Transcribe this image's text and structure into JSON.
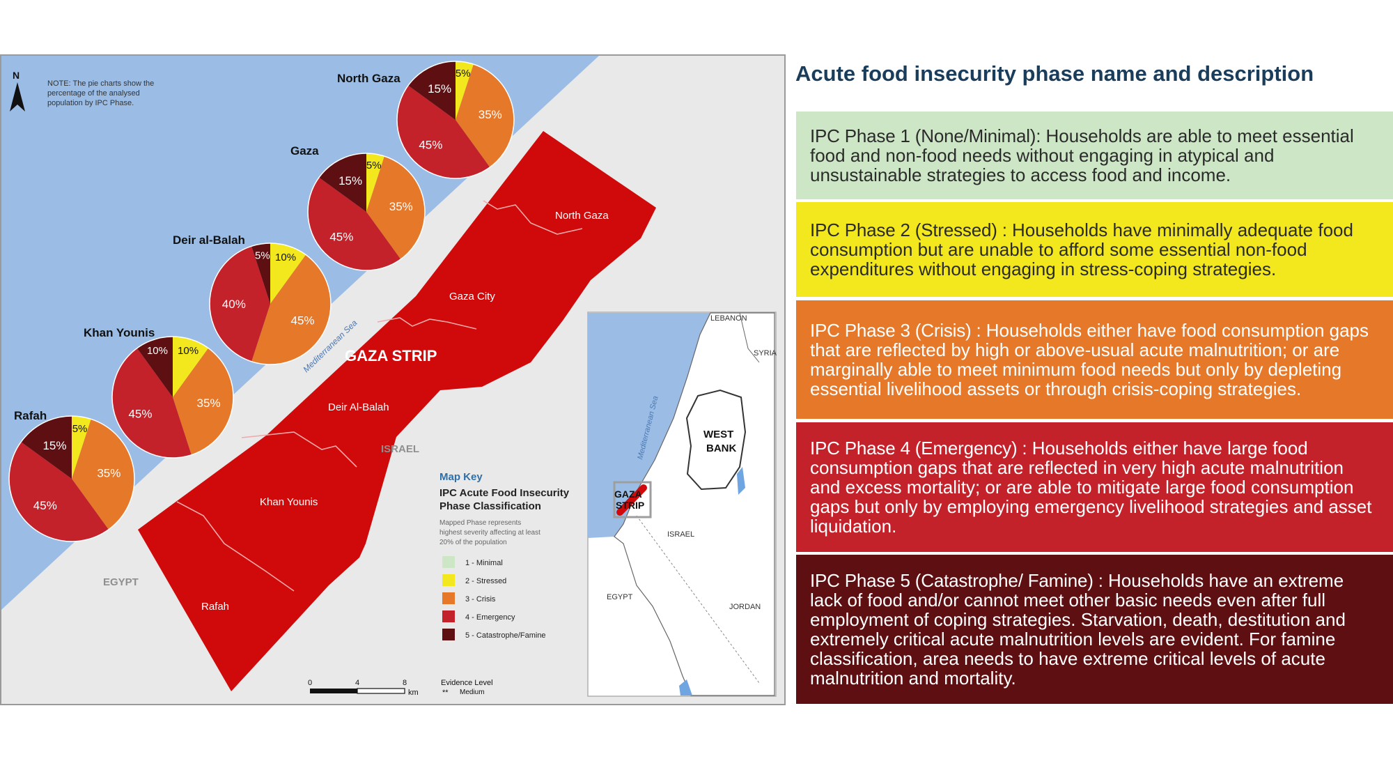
{
  "title": "Acute food insecurity phase name and description",
  "phases": [
    {
      "label": "IPC Phase 1 (None/Minimal):",
      "text": " Households are able to meet essential food and non-food needs without engaging in atypical and unsustainable strategies to access food and income.",
      "color": "#cde6c6"
    },
    {
      "label": "IPC Phase 2 (Stressed) :",
      "text": " Households have minimally adequate food consumption but are unable to afford some essential non-food expenditures without engaging in stress-coping strategies.",
      "color": "#f3e81d"
    },
    {
      "label": "IPC Phase 3 (Crisis) :",
      "text": " Households either have food consumption gaps that are reflected by high or above-usual acute malnutrition; or are marginally able to meet minimum food needs but only by depleting essential livelihood assets or through crisis-coping strategies.",
      "color": "#e6782a"
    },
    {
      "label": "IPC Phase 4 (Emergency) :",
      "text": " Households either have large food consumption gaps that are reflected in very high acute malnutrition and excess mortality; or are able to mitigate large food consumption gaps but only by employing emergency livelihood strategies and asset liquidation.",
      "color": "#c4222b"
    },
    {
      "label": "IPC Phase 5 (Catastrophe/ Famine) :",
      "text": " Households have an extreme lack of food and/or cannot meet other basic needs even after full employment of coping strategies. Starvation, death, destitution and extremely critical acute malnutrition levels are evident. For famine classification, area needs to have extreme critical levels of acute malnutrition and mortality.",
      "color": "#5e0f12"
    }
  ],
  "map": {
    "north_arrow": "N",
    "note": [
      "NOTE: The pie charts show the",
      "percentage of the analysed",
      "population by IPC Phase."
    ],
    "strip_label": "GAZA STRIP",
    "sea_label": "Mediterranean Sea",
    "israel_label": "ISRAEL",
    "egypt_label": "EGYPT",
    "region_labels": [
      "North Gaza",
      "Gaza City",
      "Deir Al-Balah",
      "Khan Younis",
      "Rafah"
    ],
    "key": {
      "title": "Map Key",
      "subtitle": [
        "IPC Acute Food Insecurity",
        "Phase Classification"
      ],
      "note": [
        "Mapped Phase represents",
        "highest severity affecting at least",
        "20% of the population"
      ],
      "items": [
        {
          "label": "1 - Minimal",
          "color": "#cde6c6"
        },
        {
          "label": "2 - Stressed",
          "color": "#f3e81d"
        },
        {
          "label": "3 - Crisis",
          "color": "#e6782a"
        },
        {
          "label": "4 - Emergency",
          "color": "#c4222b"
        },
        {
          "label": "5 - Catastrophe/Famine",
          "color": "#5e0f12"
        }
      ]
    },
    "scale": {
      "ticks": [
        "0",
        "4",
        "8"
      ],
      "unit": "km"
    },
    "evidence": {
      "title": "Evidence Level",
      "stars": "**",
      "value": "Medium"
    },
    "inset": {
      "lebanon": "LEBANON",
      "syria": "SYRIA",
      "west_bank": [
        "WEST",
        "BANK"
      ],
      "gaza": [
        "GAZA",
        "STRIP"
      ],
      "israel": "ISRAEL",
      "egypt": "EGYPT",
      "jordan": "JORDAN",
      "sea": "Mediterranean Sea"
    }
  },
  "pies": [
    {
      "name": "North Gaza",
      "slices": [
        {
          "phase": 2,
          "pct": 5
        },
        {
          "phase": 3,
          "pct": 35
        },
        {
          "phase": 4,
          "pct": 45
        },
        {
          "phase": 5,
          "pct": 15
        }
      ]
    },
    {
      "name": "Gaza",
      "slices": [
        {
          "phase": 2,
          "pct": 5
        },
        {
          "phase": 3,
          "pct": 35
        },
        {
          "phase": 4,
          "pct": 45
        },
        {
          "phase": 5,
          "pct": 15
        }
      ]
    },
    {
      "name": "Deir al-Balah",
      "slices": [
        {
          "phase": 2,
          "pct": 10
        },
        {
          "phase": 3,
          "pct": 45
        },
        {
          "phase": 4,
          "pct": 40
        },
        {
          "phase": 5,
          "pct": 5
        }
      ]
    },
    {
      "name": "Khan Younis",
      "slices": [
        {
          "phase": 2,
          "pct": 10
        },
        {
          "phase": 3,
          "pct": 35
        },
        {
          "phase": 4,
          "pct": 45
        },
        {
          "phase": 5,
          "pct": 10
        }
      ]
    },
    {
      "name": "Rafah",
      "slices": [
        {
          "phase": 2,
          "pct": 5
        },
        {
          "phase": 3,
          "pct": 35
        },
        {
          "phase": 4,
          "pct": 45
        },
        {
          "phase": 5,
          "pct": 15
        }
      ]
    }
  ]
}
